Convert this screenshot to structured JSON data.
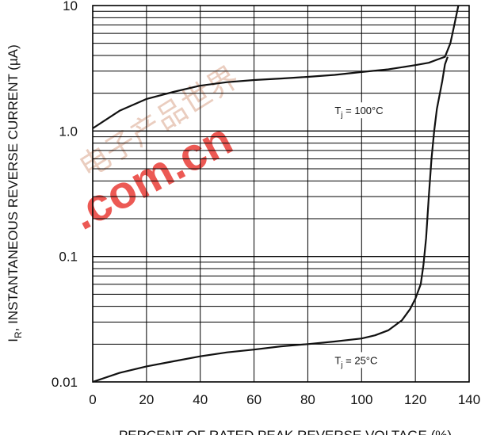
{
  "chart_data": {
    "type": "line",
    "title": "",
    "xlabel": "PERCENT OF RATED PEAK REVERSE VOLTAGE (%)",
    "ylabel_main": "I",
    "ylabel_sub": "R",
    "ylabel_rest": ", INSTANTANEOUS REVERSE CURRENT (µA)",
    "xlim": [
      0,
      140
    ],
    "ylim": [
      0.01,
      10
    ],
    "y_scale": "log",
    "grid": true,
    "x_ticks": [
      "0",
      "20",
      "40",
      "60",
      "80",
      "100",
      "120",
      "140"
    ],
    "y_ticks": [
      "0.01",
      "0.1",
      "1.0",
      "10"
    ],
    "annotations": [
      {
        "prefix": "T",
        "sub": "j",
        "suffix": " = 100°C",
        "x": 90,
        "y": 1.4
      },
      {
        "prefix": "T",
        "sub": "j",
        "suffix": " = 25°C",
        "x": 90,
        "y": 0.0143
      }
    ],
    "series": [
      {
        "label": "100°C",
        "points": [
          [
            0,
            1.05
          ],
          [
            10,
            1.45
          ],
          [
            20,
            1.8
          ],
          [
            30,
            2.05
          ],
          [
            40,
            2.3
          ],
          [
            50,
            2.45
          ],
          [
            60,
            2.55
          ],
          [
            70,
            2.62
          ],
          [
            80,
            2.7
          ],
          [
            90,
            2.8
          ],
          [
            100,
            2.95
          ],
          [
            110,
            3.1
          ],
          [
            120,
            3.35
          ],
          [
            125,
            3.5
          ],
          [
            128,
            3.7
          ],
          [
            131,
            3.9
          ],
          [
            133,
            5.0
          ],
          [
            134.5,
            7.0
          ],
          [
            136,
            10.0
          ]
        ]
      },
      {
        "label": "25°C",
        "points": [
          [
            0,
            0.01
          ],
          [
            10,
            0.0118
          ],
          [
            20,
            0.0133
          ],
          [
            30,
            0.0146
          ],
          [
            40,
            0.016
          ],
          [
            50,
            0.0172
          ],
          [
            60,
            0.0181
          ],
          [
            70,
            0.0192
          ],
          [
            80,
            0.02
          ],
          [
            90,
            0.021
          ],
          [
            100,
            0.0222
          ],
          [
            105,
            0.0235
          ],
          [
            110,
            0.0258
          ],
          [
            115,
            0.031
          ],
          [
            118,
            0.038
          ],
          [
            120,
            0.046
          ],
          [
            122,
            0.06
          ],
          [
            123,
            0.085
          ],
          [
            124,
            0.14
          ],
          [
            125,
            0.3
          ],
          [
            126,
            0.6
          ],
          [
            127,
            1.0
          ],
          [
            128,
            1.5
          ],
          [
            130,
            2.5
          ],
          [
            131,
            3.4
          ],
          [
            132,
            3.9
          ]
        ]
      }
    ]
  },
  "watermark": {
    "chars": "电子产品世界",
    "domain": ".com.cn"
  }
}
